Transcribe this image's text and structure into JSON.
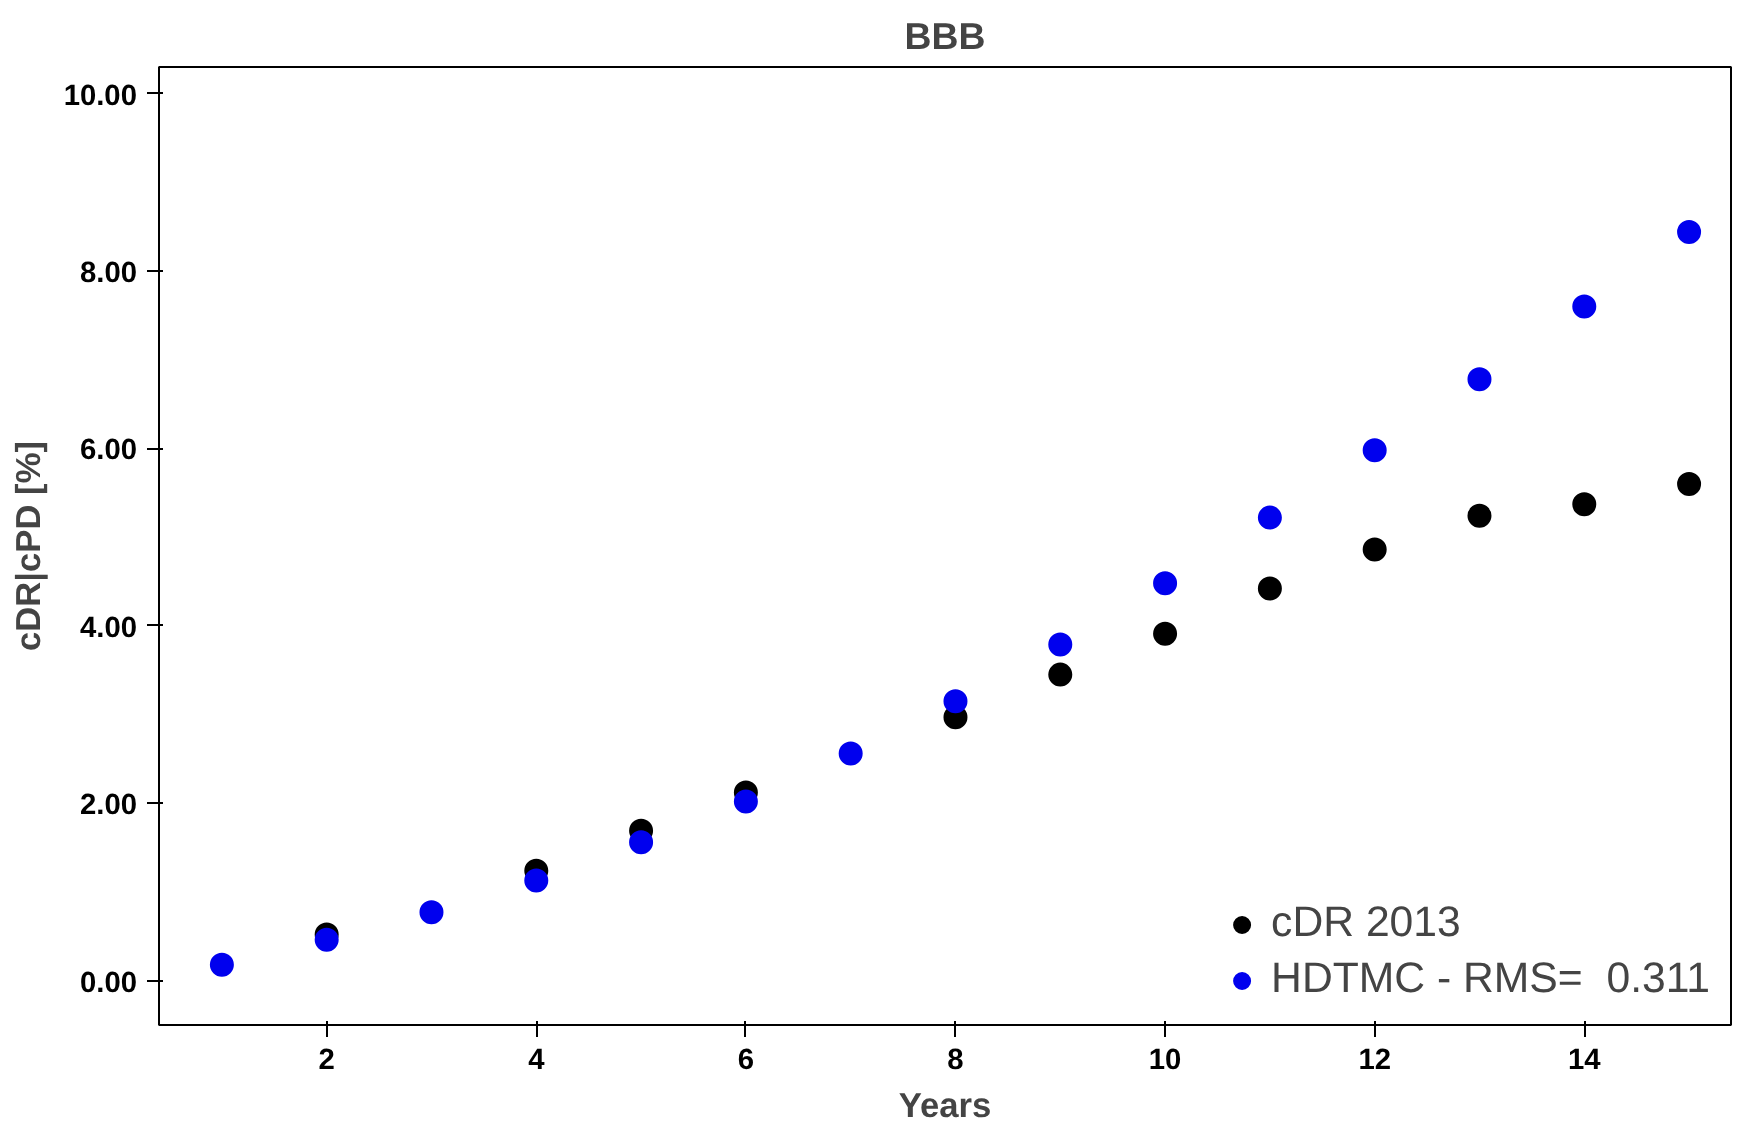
{
  "chart_data": {
    "type": "scatter",
    "title": "BBB",
    "xlabel": "Years",
    "ylabel": "cDR|cPD [%]",
    "x": [
      1,
      2,
      3,
      4,
      5,
      6,
      7,
      8,
      9,
      10,
      11,
      12,
      13,
      14,
      15
    ],
    "series": [
      {
        "name": "cDR 2013",
        "color": "#000000",
        "values": [
          null,
          0.52,
          null,
          1.24,
          1.69,
          2.12,
          null,
          2.97,
          3.45,
          3.91,
          4.42,
          4.86,
          5.24,
          5.37,
          5.6
        ]
      },
      {
        "name": "HDTMC - RMS=  0.311",
        "color": "#0000ee",
        "values": [
          0.18,
          0.46,
          0.77,
          1.13,
          1.56,
          2.02,
          2.56,
          3.15,
          3.79,
          4.48,
          5.22,
          5.98,
          6.78,
          7.6,
          8.44
        ]
      }
    ],
    "xlim": [
      0.4,
      15.4
    ],
    "ylim": [
      -0.5,
      10.3
    ],
    "xticks": [
      2,
      4,
      6,
      8,
      10,
      12,
      14
    ],
    "yticks": [
      {
        "value": 0,
        "label": "0.00"
      },
      {
        "value": 2,
        "label": "2.00"
      },
      {
        "value": 4,
        "label": "4.00"
      },
      {
        "value": 6,
        "label": "6.00"
      },
      {
        "value": 8,
        "label": "8.00"
      },
      {
        "value": 10,
        "label": "10.00"
      }
    ],
    "marker": "circle",
    "legend": "bottom right",
    "grid": false
  }
}
